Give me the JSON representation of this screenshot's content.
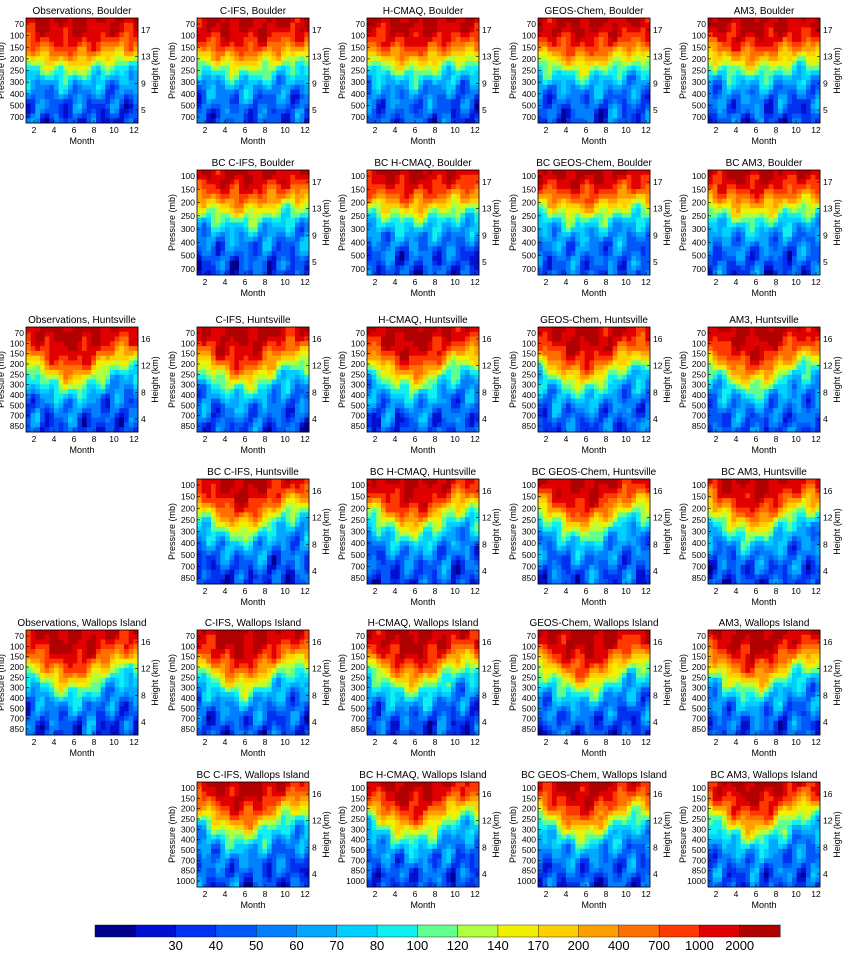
{
  "chart_data": {
    "type": "heatmap",
    "colorbar": {
      "labels": [
        "30",
        "40",
        "50",
        "60",
        "70",
        "80",
        "100",
        "120",
        "140",
        "170",
        "200",
        "400",
        "700",
        "1000",
        "2000"
      ],
      "colors": [
        "#00008f",
        "#0010d0",
        "#0030f0",
        "#0058f8",
        "#0080ff",
        "#00a8ff",
        "#00d0ff",
        "#10f0f0",
        "#60ff90",
        "#b0ff40",
        "#f0f000",
        "#ffd000",
        "#ffa000",
        "#ff7000",
        "#ff3800",
        "#e00000",
        "#b00000"
      ]
    },
    "xlabel": "Month",
    "ylabel_left": "Pressure (mb)",
    "ylabel_right": "Height (km)",
    "x_ticks": [
      "2",
      "4",
      "6",
      "8",
      "10",
      "12"
    ],
    "sites": [
      {
        "name": "Boulder",
        "p_ticks": [
          "70",
          "100",
          "150",
          "200",
          "250",
          "300",
          "400",
          "500",
          "700"
        ],
        "h_ticks": [
          "17",
          "13",
          "9",
          "5"
        ]
      },
      {
        "name": "Huntsville",
        "p_ticks": [
          "70",
          "100",
          "150",
          "200",
          "250",
          "300",
          "400",
          "500",
          "700",
          "850"
        ],
        "h_ticks": [
          "16",
          "12",
          "8",
          "4"
        ]
      },
      {
        "name": "Wallops Island",
        "p_ticks": [
          "70",
          "100",
          "150",
          "200",
          "250",
          "300",
          "400",
          "500",
          "700",
          "850"
        ],
        "h_ticks": [
          "16",
          "12",
          "8",
          "4"
        ]
      }
    ],
    "site_ticks_bc": [
      {
        "p_ticks": [
          "100",
          "150",
          "200",
          "250",
          "300",
          "400",
          "500",
          "700"
        ],
        "h_ticks": [
          "17",
          "13",
          "9",
          "5"
        ]
      },
      {
        "p_ticks": [
          "100",
          "150",
          "200",
          "250",
          "300",
          "400",
          "500",
          "700",
          "850"
        ],
        "h_ticks": [
          "16",
          "12",
          "8",
          "4"
        ]
      },
      {
        "p_ticks": [
          "100",
          "150",
          "200",
          "250",
          "300",
          "400",
          "500",
          "700",
          "850",
          "1000"
        ],
        "h_ticks": [
          "16",
          "12",
          "8",
          "4"
        ]
      }
    ],
    "panels": [
      {
        "title": "Observations, Boulder",
        "row": 0,
        "col": 0,
        "site": 0,
        "bc": false
      },
      {
        "title": "C-IFS, Boulder",
        "row": 0,
        "col": 1,
        "site": 0,
        "bc": false
      },
      {
        "title": "H-CMAQ, Boulder",
        "row": 0,
        "col": 2,
        "site": 0,
        "bc": false
      },
      {
        "title": "GEOS-Chem, Boulder",
        "row": 0,
        "col": 3,
        "site": 0,
        "bc": false
      },
      {
        "title": "AM3, Boulder",
        "row": 0,
        "col": 4,
        "site": 0,
        "bc": false
      },
      {
        "title": "BC C-IFS, Boulder",
        "row": 1,
        "col": 1,
        "site": 0,
        "bc": true
      },
      {
        "title": "BC H-CMAQ, Boulder",
        "row": 1,
        "col": 2,
        "site": 0,
        "bc": true
      },
      {
        "title": "BC GEOS-Chem, Boulder",
        "row": 1,
        "col": 3,
        "site": 0,
        "bc": true
      },
      {
        "title": "BC AM3, Boulder",
        "row": 1,
        "col": 4,
        "site": 0,
        "bc": true
      },
      {
        "title": "Observations, Huntsville",
        "row": 2,
        "col": 0,
        "site": 1,
        "bc": false
      },
      {
        "title": "C-IFS, Huntsville",
        "row": 2,
        "col": 1,
        "site": 1,
        "bc": false
      },
      {
        "title": "H-CMAQ, Huntsville",
        "row": 2,
        "col": 2,
        "site": 1,
        "bc": false
      },
      {
        "title": "GEOS-Chem, Huntsville",
        "row": 2,
        "col": 3,
        "site": 1,
        "bc": false
      },
      {
        "title": "AM3, Huntsville",
        "row": 2,
        "col": 4,
        "site": 1,
        "bc": false
      },
      {
        "title": "BC C-IFS, Huntsville",
        "row": 3,
        "col": 1,
        "site": 1,
        "bc": true
      },
      {
        "title": "BC H-CMAQ, Huntsville",
        "row": 3,
        "col": 2,
        "site": 1,
        "bc": true
      },
      {
        "title": "BC GEOS-Chem, Huntsville",
        "row": 3,
        "col": 3,
        "site": 1,
        "bc": true
      },
      {
        "title": "BC AM3, Huntsville",
        "row": 3,
        "col": 4,
        "site": 1,
        "bc": true
      },
      {
        "title": "Observations, Wallops Island",
        "row": 4,
        "col": 0,
        "site": 2,
        "bc": false
      },
      {
        "title": "C-IFS, Wallops Island",
        "row": 4,
        "col": 1,
        "site": 2,
        "bc": false
      },
      {
        "title": "H-CMAQ, Wallops Island",
        "row": 4,
        "col": 2,
        "site": 2,
        "bc": false
      },
      {
        "title": "GEOS-Chem, Wallops Island",
        "row": 4,
        "col": 3,
        "site": 2,
        "bc": false
      },
      {
        "title": "AM3, Wallops Island",
        "row": 4,
        "col": 4,
        "site": 2,
        "bc": false
      },
      {
        "title": "BC C-IFS, Wallops Island",
        "row": 5,
        "col": 1,
        "site": 2,
        "bc": true
      },
      {
        "title": "BC H-CMAQ, Wallops Island",
        "row": 5,
        "col": 2,
        "site": 2,
        "bc": true
      },
      {
        "title": "BC GEOS-Chem, Wallops Island",
        "row": 5,
        "col": 3,
        "site": 2,
        "bc": true
      },
      {
        "title": "BC AM3, Wallops Island",
        "row": 5,
        "col": 4,
        "site": 2,
        "bc": true
      }
    ]
  }
}
